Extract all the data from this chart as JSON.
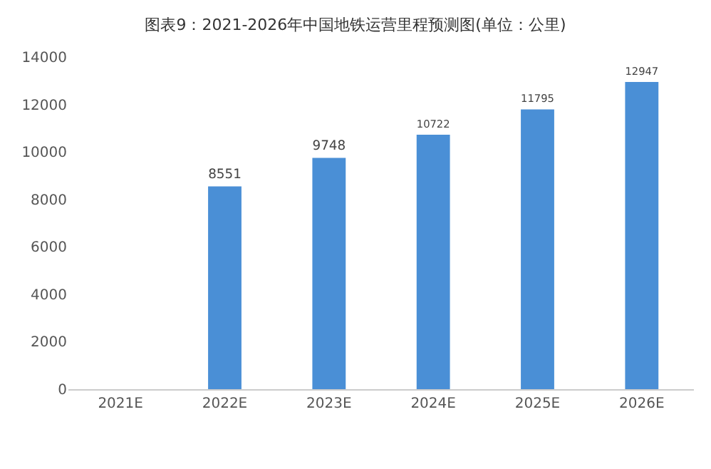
{
  "chart_data": {
    "type": "bar",
    "title": "图表9：2021-2026年中国地铁运营里程预测图(单位：公里)",
    "categories": [
      "2021E",
      "2022E",
      "2023E",
      "2024E",
      "2025E",
      "2026E"
    ],
    "values": [
      null,
      8551,
      9748,
      10722,
      11795,
      12947
    ],
    "color": "#4a8fd6",
    "ylim": [
      0,
      14000
    ],
    "yticks": [
      0,
      2000,
      4000,
      6000,
      8000,
      10000,
      12000,
      14000
    ],
    "grid": false,
    "data_labels": true
  }
}
